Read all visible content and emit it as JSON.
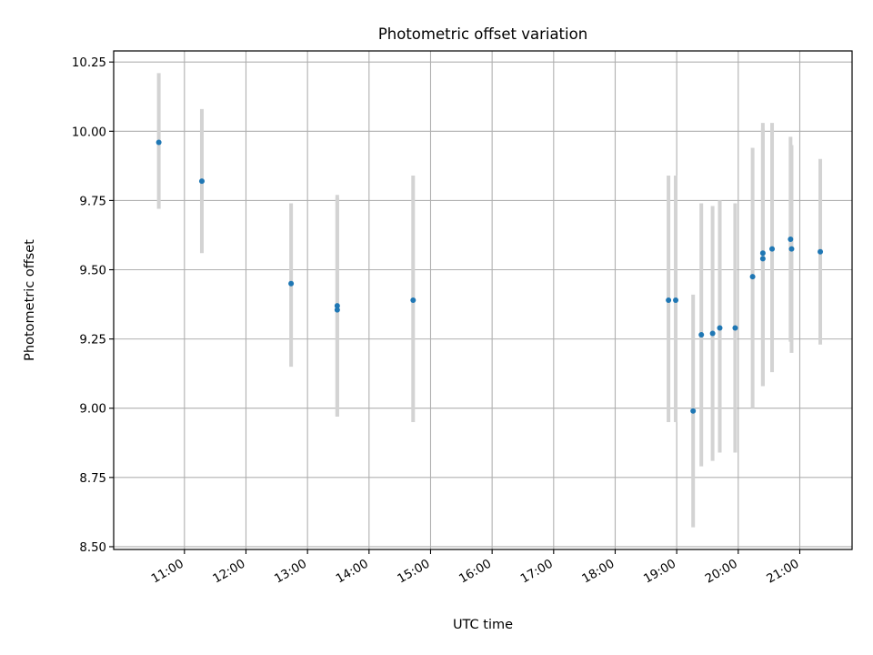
{
  "chart_data": {
    "type": "scatter",
    "title": "Photometric offset variation",
    "xlabel": "UTC time",
    "ylabel": "Photometric offset",
    "x_range_hours": [
      9.85,
      21.85
    ],
    "ylim": [
      8.49,
      10.29
    ],
    "x_ticks": [
      "11:00",
      "12:00",
      "13:00",
      "14:00",
      "15:00",
      "16:00",
      "17:00",
      "18:00",
      "19:00",
      "20:00",
      "21:00"
    ],
    "y_ticks": [
      "8.50",
      "8.75",
      "9.00",
      "9.25",
      "9.50",
      "9.75",
      "10.00",
      "10.25"
    ],
    "grid": true,
    "colors": {
      "point": "#1f77b4",
      "errorbar": "#d3d3d3",
      "grid": "#b0b0b0"
    },
    "points": [
      {
        "x": "10:35",
        "y": 9.96,
        "ylo": 9.72,
        "yhi": 10.21
      },
      {
        "x": "11:17",
        "y": 9.82,
        "ylo": 9.56,
        "yhi": 10.08
      },
      {
        "x": "12:44",
        "y": 9.45,
        "ylo": 9.15,
        "yhi": 9.74
      },
      {
        "x": "13:29",
        "y": 9.37,
        "ylo": 8.97,
        "yhi": 9.77
      },
      {
        "x": "13:29",
        "y": 9.355,
        "ylo": 8.97,
        "yhi": 9.76
      },
      {
        "x": "14:43",
        "y": 9.39,
        "ylo": 8.95,
        "yhi": 9.84
      },
      {
        "x": "18:52",
        "y": 9.39,
        "ylo": 8.95,
        "yhi": 9.84
      },
      {
        "x": "18:59",
        "y": 9.39,
        "ylo": 8.95,
        "yhi": 9.84
      },
      {
        "x": "19:16",
        "y": 8.99,
        "ylo": 8.57,
        "yhi": 9.41
      },
      {
        "x": "19:24",
        "y": 9.265,
        "ylo": 8.79,
        "yhi": 9.74
      },
      {
        "x": "19:35",
        "y": 9.27,
        "ylo": 8.81,
        "yhi": 9.73
      },
      {
        "x": "19:42",
        "y": 9.29,
        "ylo": 8.84,
        "yhi": 9.75
      },
      {
        "x": "19:57",
        "y": 9.29,
        "ylo": 8.84,
        "yhi": 9.74
      },
      {
        "x": "20:14",
        "y": 9.475,
        "ylo": 9.0,
        "yhi": 9.94
      },
      {
        "x": "20:24",
        "y": 9.56,
        "ylo": 9.08,
        "yhi": 10.03
      },
      {
        "x": "20:24",
        "y": 9.54,
        "ylo": 9.08,
        "yhi": 10.01
      },
      {
        "x": "20:33",
        "y": 9.575,
        "ylo": 9.13,
        "yhi": 10.03
      },
      {
        "x": "20:51",
        "y": 9.61,
        "ylo": 9.24,
        "yhi": 9.98
      },
      {
        "x": "20:52",
        "y": 9.575,
        "ylo": 9.2,
        "yhi": 9.95
      },
      {
        "x": "21:20",
        "y": 9.565,
        "ylo": 9.23,
        "yhi": 9.9
      }
    ]
  }
}
